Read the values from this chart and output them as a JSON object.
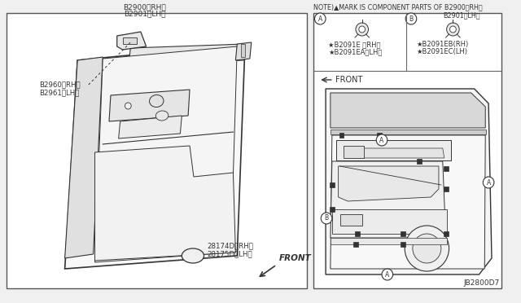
{
  "bg_color": "#f0f0f0",
  "white": "#ffffff",
  "lc": "#333333",
  "tc": "#333333",
  "title_top_left": "B2900〈RH〉\nB2901〈LH〉",
  "note_text": "NOTE)▲MARK IS COMPONENT PARTS OF B2900〈RH〉",
  "note_text2": "B2901〈LH〉",
  "label_b2960": "B2960〈RH〉\nB2961〈LH〉",
  "label_28174": "28174D〈RH〉\n28175D〈LH〉",
  "front_label": "FRONT",
  "legend_A_l1": "★B2091E 〈RH〉",
  "legend_A_l2": "★B2091EA〈LH〉",
  "legend_B_l1": "★B2091EB(RH)",
  "legend_B_l2": "★B2091EC(LH)",
  "front_label2": "FRONT",
  "diagram_id": "JB2800D7"
}
